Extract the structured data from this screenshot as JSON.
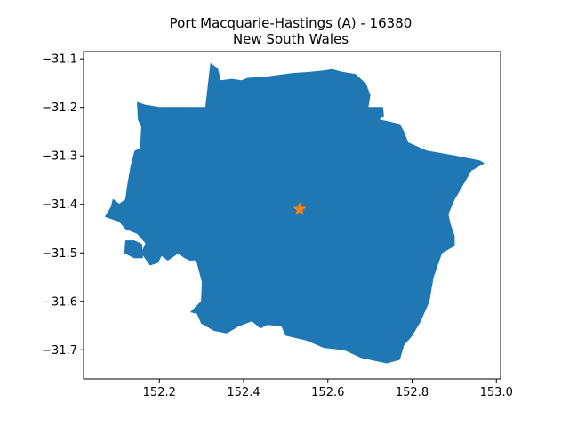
{
  "chart_data": {
    "type": "map",
    "title_line1": "Port Macquarie-Hastings (A) - 16380",
    "title_line2": "New South Wales",
    "xlabel": "",
    "ylabel": "",
    "xlim": [
      152.02,
      153.01
    ],
    "ylim": [
      -31.76,
      -31.085
    ],
    "xticks": [
      152.2,
      152.4,
      152.6,
      152.8,
      153.0
    ],
    "xtick_labels": [
      "152.2",
      "152.4",
      "152.6",
      "152.8",
      "153.0"
    ],
    "yticks": [
      -31.1,
      -31.2,
      -31.3,
      -31.4,
      -31.5,
      -31.6,
      -31.7
    ],
    "ytick_labels": [
      "−31.1",
      "−31.2",
      "−31.3",
      "−31.4",
      "−31.5",
      "−31.6",
      "−31.7"
    ],
    "grid": false,
    "region_color": "#1f77b4",
    "marker": {
      "name": "centroid",
      "shape": "star",
      "x": 152.533,
      "y": -31.41,
      "color": "#ff7f0e"
    },
    "boundary": [
      [
        152.31,
        -31.2
      ],
      [
        152.322,
        -31.11
      ],
      [
        152.338,
        -31.12
      ],
      [
        152.345,
        -31.145
      ],
      [
        152.372,
        -31.142
      ],
      [
        152.395,
        -31.145
      ],
      [
        152.41,
        -31.14
      ],
      [
        152.45,
        -31.138
      ],
      [
        152.5,
        -31.132
      ],
      [
        152.52,
        -31.13
      ],
      [
        152.555,
        -31.128
      ],
      [
        152.59,
        -31.125
      ],
      [
        152.61,
        -31.122
      ],
      [
        152.635,
        -31.128
      ],
      [
        152.665,
        -31.132
      ],
      [
        152.69,
        -31.152
      ],
      [
        152.7,
        -31.175
      ],
      [
        152.695,
        -31.2
      ],
      [
        152.73,
        -31.2
      ],
      [
        152.732,
        -31.218
      ],
      [
        152.72,
        -31.225
      ],
      [
        152.77,
        -31.235
      ],
      [
        152.78,
        -31.25
      ],
      [
        152.79,
        -31.273
      ],
      [
        152.835,
        -31.29
      ],
      [
        152.9,
        -31.3
      ],
      [
        152.96,
        -31.31
      ],
      [
        152.97,
        -31.315
      ],
      [
        152.94,
        -31.33
      ],
      [
        152.92,
        -31.36
      ],
      [
        152.9,
        -31.39
      ],
      [
        152.885,
        -31.42
      ],
      [
        152.89,
        -31.44
      ],
      [
        152.9,
        -31.465
      ],
      [
        152.9,
        -31.485
      ],
      [
        152.87,
        -31.5
      ],
      [
        152.85,
        -31.55
      ],
      [
        152.84,
        -31.6
      ],
      [
        152.82,
        -31.64
      ],
      [
        152.8,
        -31.67
      ],
      [
        152.78,
        -31.69
      ],
      [
        152.77,
        -31.72
      ],
      [
        152.74,
        -31.727
      ],
      [
        152.68,
        -31.716
      ],
      [
        152.64,
        -31.7
      ],
      [
        152.59,
        -31.695
      ],
      [
        152.55,
        -31.68
      ],
      [
        152.5,
        -31.67
      ],
      [
        152.49,
        -31.65
      ],
      [
        152.455,
        -31.648
      ],
      [
        152.44,
        -31.655
      ],
      [
        152.42,
        -31.64
      ],
      [
        152.39,
        -31.65
      ],
      [
        152.36,
        -31.665
      ],
      [
        152.33,
        -31.66
      ],
      [
        152.3,
        -31.645
      ],
      [
        152.29,
        -31.625
      ],
      [
        152.275,
        -31.622
      ],
      [
        152.3,
        -31.6
      ],
      [
        152.302,
        -31.56
      ],
      [
        152.288,
        -31.515
      ],
      [
        152.272,
        -31.515
      ],
      [
        152.26,
        -31.51
      ],
      [
        152.245,
        -31.5
      ],
      [
        152.22,
        -31.515
      ],
      [
        152.205,
        -31.505
      ],
      [
        152.196,
        -31.52
      ],
      [
        152.178,
        -31.525
      ],
      [
        152.158,
        -31.5
      ],
      [
        152.168,
        -31.48
      ],
      [
        152.148,
        -31.46
      ],
      [
        152.12,
        -31.45
      ],
      [
        152.105,
        -31.435
      ],
      [
        152.072,
        -31.425
      ],
      [
        152.086,
        -31.405
      ],
      [
        152.09,
        -31.39
      ],
      [
        152.105,
        -31.4
      ],
      [
        152.12,
        -31.39
      ],
      [
        152.125,
        -31.36
      ],
      [
        152.133,
        -31.32
      ],
      [
        152.142,
        -31.29
      ],
      [
        152.155,
        -31.285
      ],
      [
        152.158,
        -31.24
      ],
      [
        152.15,
        -31.225
      ],
      [
        152.148,
        -31.19
      ],
      [
        152.165,
        -31.195
      ],
      [
        152.2,
        -31.2
      ],
      [
        152.215,
        -31.2
      ]
    ],
    "islands": [
      [
        [
          152.118,
          -31.5
        ],
        [
          152.12,
          -31.475
        ],
        [
          152.14,
          -31.475
        ],
        [
          152.158,
          -31.482
        ],
        [
          152.16,
          -31.51
        ],
        [
          152.14,
          -31.51
        ]
      ]
    ]
  }
}
